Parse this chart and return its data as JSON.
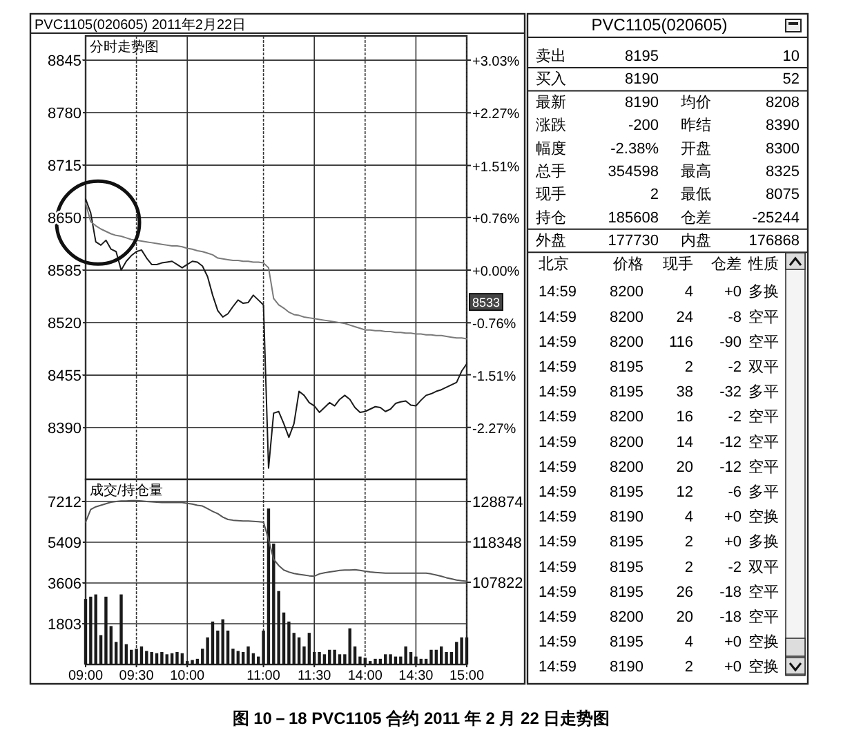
{
  "chart_data": [
    {
      "type": "line",
      "title": "PVC1105(020605) 2011年2月22日",
      "subtitle": "分时走势图",
      "categories": [
        null,
        null,
        null,
        null,
        null,
        null,
        null,
        null,
        null,
        null,
        null,
        null,
        null,
        null,
        null,
        null,
        null,
        null,
        null,
        null,
        null,
        null,
        null,
        null,
        null,
        null,
        null,
        null,
        null,
        null,
        null,
        null,
        null,
        null,
        null,
        null,
        null,
        null,
        null,
        null,
        null,
        null,
        null,
        null,
        null,
        null,
        null,
        null,
        null,
        null,
        null,
        null,
        null,
        null,
        null,
        null,
        null,
        null,
        null,
        null,
        null,
        null,
        null,
        null,
        null,
        null,
        null,
        null,
        null,
        null,
        null,
        null,
        null,
        null,
        null,
        null
      ],
      "ylim": [
        8326,
        8875
      ],
      "yticks": [
        8845,
        8780,
        8715,
        8650,
        8585,
        8520,
        8455,
        8390
      ],
      "y2lim": [
        -3.02,
        3.38
      ],
      "y2ticks": [
        {
          "value": 3.03,
          "label": "+3.03%"
        },
        {
          "value": 2.27,
          "label": "+2.27%"
        },
        {
          "value": 1.51,
          "label": "+1.51%"
        },
        {
          "value": 0.76,
          "label": "+0.76%"
        },
        {
          "value": 0,
          "label": "+0.00%"
        },
        {
          "value": -0.76,
          "label": "-0.76%"
        },
        {
          "value": -1.51,
          "label": "-1.51%"
        },
        {
          "value": -2.27,
          "label": "-2.27%"
        }
      ],
      "tick_labels": "y",
      "grid": true,
      "series": [
        {
          "color": "#1a1a1a",
          "values": [
            8673,
            8656,
            8620,
            8616,
            8622,
            8611,
            8608,
            8585,
            8596,
            8603,
            8608,
            8610,
            8600,
            8592,
            8592,
            8594,
            8595,
            8596,
            8592,
            8588,
            8592,
            8596,
            8595,
            8590,
            8577,
            8554,
            8535,
            8527,
            8531,
            8540,
            8548,
            8544,
            8545,
            8554,
            8548,
            8542,
            8340,
            8408,
            8410,
            8395,
            8378,
            8395,
            8435,
            8430,
            8421,
            8417,
            8409,
            8415,
            8421,
            8417,
            8425,
            8430,
            8425,
            8415,
            8409,
            8410,
            8413,
            8416,
            8415,
            8410,
            8413,
            8420,
            8422,
            8423,
            8418,
            8417,
            8424,
            8430,
            8432,
            8435,
            8437,
            8440,
            8443,
            8446,
            8460,
            8469
          ]
        },
        {
          "color": "#7a7a7a",
          "values": [
            8668,
            8645,
            8640,
            8636,
            8633,
            8630,
            8628,
            8627,
            8625,
            8623,
            8622,
            8621,
            8620,
            8619,
            8618,
            8617,
            8616,
            8615,
            8615,
            8614,
            8612,
            8611,
            8609,
            8608,
            8606,
            8604,
            8600,
            8599,
            8598,
            8597,
            8597,
            8596,
            8596,
            8595,
            8595,
            8594,
            8588,
            8550,
            8542,
            8538,
            8533,
            8530,
            8529,
            8527,
            8526,
            8525,
            8524,
            8523,
            8522,
            8521,
            8520,
            8519,
            8517,
            8515,
            8513,
            8511,
            8511,
            8510,
            8510,
            8509,
            8509,
            8508,
            8508,
            8507,
            8507,
            8506,
            8506,
            8505,
            8505,
            8504,
            8504,
            8503,
            8502,
            8501,
            8501,
            8500
          ]
        }
      ],
      "annotations": [
        "8533",
        "图 10－18 PVC1105 合约 2011 年 2 月 22 日走势图"
      ]
    },
    {
      "type": "bar",
      "title": "成交/持仓量",
      "categories": [
        "09:00",
        null,
        null,
        null,
        null,
        null,
        null,
        null,
        null,
        null,
        "09:30",
        null,
        null,
        null,
        null,
        null,
        null,
        null,
        null,
        null,
        "10:00",
        null,
        null,
        null,
        null,
        null,
        null,
        null,
        null,
        null,
        null,
        null,
        null,
        null,
        null,
        "11:00",
        null,
        null,
        null,
        null,
        null,
        null,
        null,
        null,
        null,
        "11:30",
        null,
        null,
        null,
        null,
        null,
        null,
        null,
        null,
        null,
        "14:00",
        null,
        null,
        null,
        null,
        null,
        null,
        null,
        null,
        null,
        "14:30",
        null,
        null,
        null,
        null,
        null,
        null,
        null,
        null,
        null,
        "15:00"
      ],
      "ylim": [
        0,
        8190
      ],
      "yticks": [
        7212,
        5409,
        3606,
        1803
      ],
      "y2lim": [
        86380,
        134650
      ],
      "y2ticks": [
        128874,
        118348,
        107822
      ],
      "grid": true,
      "series": [
        {
          "type": "bar",
          "color": "#1a1a1a",
          "values": [
            2900,
            3000,
            3100,
            1300,
            3000,
            1700,
            1000,
            3100,
            900,
            650,
            700,
            800,
            600,
            550,
            500,
            550,
            450,
            500,
            550,
            500,
            150,
            200,
            250,
            700,
            1200,
            1900,
            1500,
            2000,
            1500,
            700,
            600,
            550,
            800,
            500,
            350,
            1500,
            6900,
            5350,
            3250,
            2300,
            1900,
            1400,
            1200,
            800,
            1400,
            550,
            550,
            450,
            650,
            650,
            450,
            450,
            1600,
            800,
            350,
            300,
            150,
            250,
            250,
            450,
            450,
            350,
            350,
            800,
            550,
            350,
            250,
            250,
            650,
            650,
            800,
            550,
            550,
            1000,
            1200,
            1200
          ]
        },
        {
          "type": "line",
          "axis": "y2",
          "color": "#555555",
          "values": [
            123500,
            126800,
            127500,
            127900,
            128300,
            128700,
            128900,
            129000,
            129000,
            129100,
            129100,
            129000,
            128900,
            128800,
            128700,
            128600,
            128600,
            128600,
            128600,
            128600,
            128400,
            128200,
            127900,
            127700,
            127000,
            126300,
            125700,
            124800,
            124200,
            124000,
            123900,
            123800,
            123800,
            123700,
            123600,
            123500,
            119000,
            113800,
            112200,
            111000,
            110500,
            110100,
            109900,
            109700,
            109500,
            109400,
            110000,
            110300,
            110500,
            110700,
            110900,
            111000,
            111000,
            111100,
            110900,
            110700,
            110500,
            110400,
            110300,
            110200,
            110200,
            110200,
            110200,
            110200,
            110200,
            110200,
            110200,
            110200,
            110000,
            109700,
            109400,
            109000,
            108700,
            108400,
            108200,
            108100
          ]
        }
      ]
    },
    {
      "type": "other",
      "title": "PVC1105(020605)",
      "annotations": [
        "卖出 8195 10",
        "买入 8190 52",
        "最新 8190 均价 8208",
        "涨跌 -200 昨结 8390",
        "幅度 -2.38% 开盘 8300",
        "总手 354598 最高 8325",
        "现手 2 最低 8075",
        "持仓 185608 仓差 -25244",
        "外盘 177730 内盘 176868",
        "北京 价格 现手 仓差 性质",
        "14:59 8200 4 +0 多换",
        "14:59 8200 24 -8 空平",
        "14:59 8200 116 -90 空平",
        "14:59 8195 2 -2 双平",
        "14:59 8195 38 -32 多平",
        "14:59 8200 16 -2 空平",
        "14:59 8200 14 -12 空平",
        "14:59 8200 20 -12 空平",
        "14:59 8195 12 -6 多平",
        "14:59 8190 4 +0 空换",
        "14:59 8195 2 +0 多换",
        "14:59 8195 2 -2 双平",
        "14:59 8195 26 -18 空平",
        "14:59 8200 20 -18 空平",
        "14:59 8195 4 +0 空换",
        "14:59 8190 2 +0 空换"
      ]
    }
  ]
}
